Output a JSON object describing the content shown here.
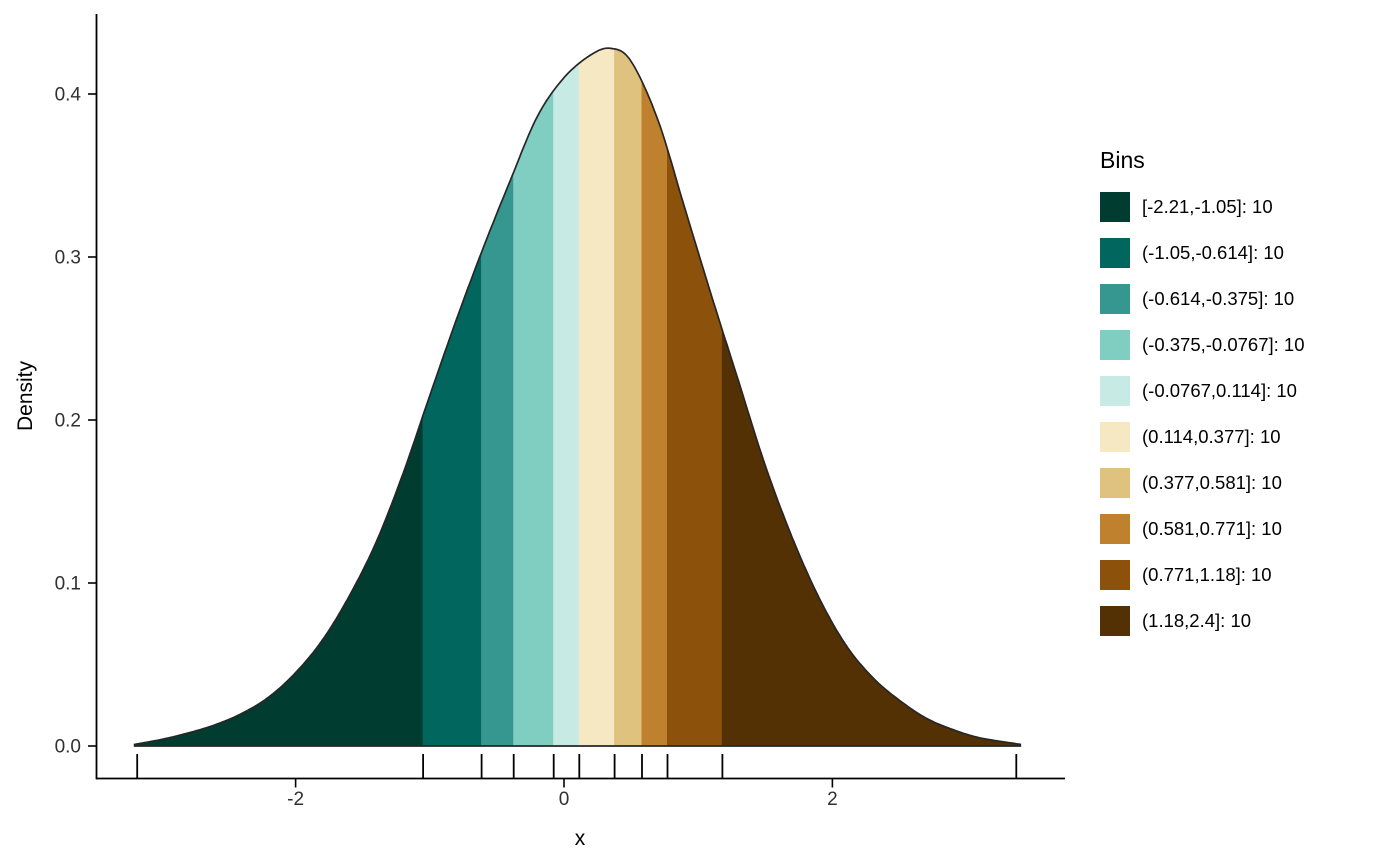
{
  "chart_data": {
    "type": "area",
    "title": "",
    "xlabel": "x",
    "ylabel": "Density",
    "grid": false,
    "legend_position": "right",
    "legend_title": "Bins",
    "xlim": [
      -3.6,
      3.73
    ],
    "ylim": [
      0,
      0.45
    ],
    "outline_color": "#262626",
    "axis_color": "#000000",
    "x_ticks": [
      {
        "value": -2,
        "label": "-2"
      },
      {
        "value": 0,
        "label": "0"
      },
      {
        "value": 2,
        "label": "2"
      }
    ],
    "y_ticks": [
      {
        "value": 0.0,
        "label": "0.0"
      },
      {
        "value": 0.1,
        "label": "0.1"
      },
      {
        "value": 0.2,
        "label": "0.2"
      },
      {
        "value": 0.3,
        "label": "0.3"
      },
      {
        "value": 0.4,
        "label": "0.4"
      }
    ],
    "bins": [
      {
        "label": "[-2.21,-1.05]: 10",
        "count": 10,
        "color": "#003c30",
        "fill_from": -3.2,
        "fill_to": -1.05
      },
      {
        "label": "(-1.05,-0.614]: 10",
        "count": 10,
        "color": "#01665e",
        "fill_from": -1.05,
        "fill_to": -0.614
      },
      {
        "label": "(-0.614,-0.375]: 10",
        "count": 10,
        "color": "#35978f",
        "fill_from": -0.614,
        "fill_to": -0.375
      },
      {
        "label": "(-0.375,-0.0767]: 10",
        "count": 10,
        "color": "#80cdc1",
        "fill_from": -0.375,
        "fill_to": -0.0767
      },
      {
        "label": "(-0.0767,0.114]: 10",
        "count": 10,
        "color": "#c7eae5",
        "fill_from": -0.0767,
        "fill_to": 0.114
      },
      {
        "label": "(0.114,0.377]: 10",
        "count": 10,
        "color": "#f6e8c3",
        "fill_from": 0.114,
        "fill_to": 0.377
      },
      {
        "label": "(0.377,0.581]: 10",
        "count": 10,
        "color": "#dfc27d",
        "fill_from": 0.377,
        "fill_to": 0.581
      },
      {
        "label": "(0.581,0.771]: 10",
        "count": 10,
        "color": "#bf812d",
        "fill_from": 0.581,
        "fill_to": 0.771
      },
      {
        "label": "(0.771,1.18]: 10",
        "count": 10,
        "color": "#8c510a",
        "fill_from": 0.771,
        "fill_to": 1.18
      },
      {
        "label": "(1.18,2.4]: 10",
        "count": 10,
        "color": "#543005",
        "fill_from": 1.18,
        "fill_to": 3.4
      }
    ],
    "rug_positions": [
      -3.18,
      -1.05,
      -0.614,
      -0.375,
      -0.0767,
      0.114,
      0.377,
      0.581,
      0.771,
      1.18,
      3.37
    ],
    "density_curve": {
      "x": [
        -3.2,
        -3.0,
        -2.8,
        -2.6,
        -2.4,
        -2.2,
        -2.0,
        -1.8,
        -1.6,
        -1.4,
        -1.2,
        -1.0,
        -0.8,
        -0.6,
        -0.4,
        -0.2,
        0.0,
        0.2,
        0.35,
        0.5,
        0.7,
        0.9,
        1.1,
        1.3,
        1.5,
        1.7,
        1.9,
        2.1,
        2.3,
        2.5,
        2.7,
        2.9,
        3.1,
        3.4
      ],
      "y": [
        0.001,
        0.004,
        0.008,
        0.013,
        0.02,
        0.03,
        0.045,
        0.065,
        0.092,
        0.125,
        0.167,
        0.215,
        0.262,
        0.306,
        0.347,
        0.386,
        0.41,
        0.424,
        0.428,
        0.42,
        0.384,
        0.33,
        0.276,
        0.224,
        0.172,
        0.128,
        0.091,
        0.062,
        0.042,
        0.028,
        0.017,
        0.01,
        0.005,
        0.001
      ]
    }
  }
}
